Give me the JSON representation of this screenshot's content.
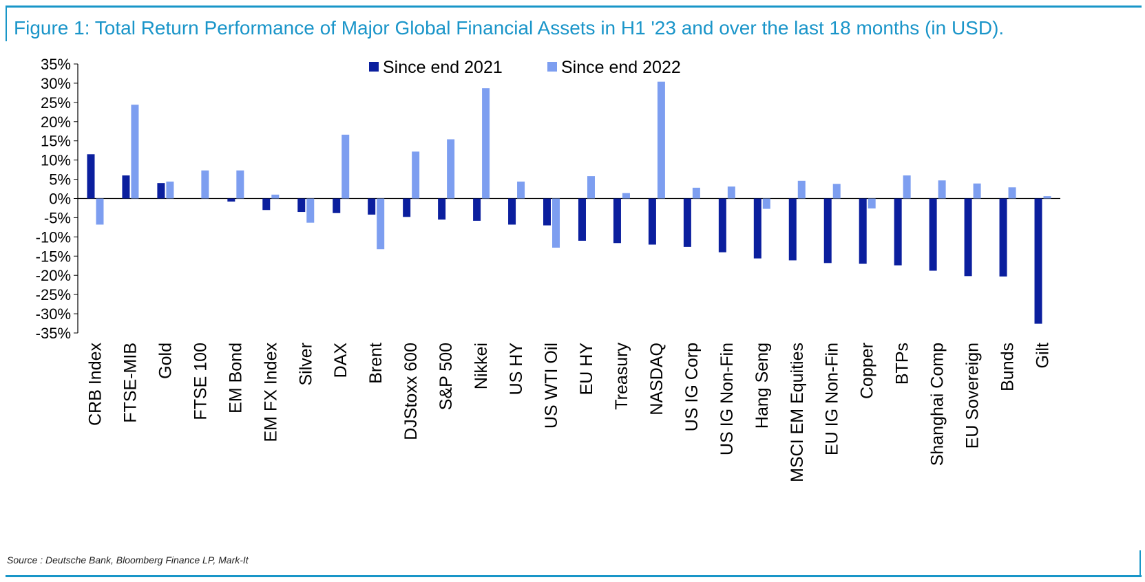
{
  "title": "Figure 1: Total Return Performance of Major Global Financial Assets in H1 '23 and over the last 18 months (in USD).",
  "source": "Source : Deutsche Bank, Bloomberg Finance LP, Mark-It",
  "chart_data": {
    "type": "bar",
    "ylim": [
      -35,
      35
    ],
    "yticks": [
      35,
      30,
      25,
      20,
      15,
      10,
      5,
      0,
      -5,
      -10,
      -15,
      -20,
      -25,
      -30,
      -35
    ],
    "ytick_labels": [
      "35%",
      "30%",
      "25%",
      "20%",
      "15%",
      "10%",
      "5%",
      "0%",
      "-5%",
      "-10%",
      "-15%",
      "-20%",
      "-25%",
      "-30%",
      "-35%"
    ],
    "legend_position": "top-center",
    "grid": false,
    "categories": [
      "CRB Index",
      "FTSE-MIB",
      "Gold",
      "FTSE 100",
      "EM Bond",
      "EM FX Index",
      "Silver",
      "DAX",
      "Brent",
      "DJStoxx 600",
      "S&P 500",
      "Nikkei",
      "US HY",
      "US WTI Oil",
      "EU HY",
      "Treasury",
      "NASDAQ",
      "US IG Corp",
      "US IG Non-Fin",
      "Hang Seng",
      "MSCI EM Equities",
      "EU IG Non-Fin",
      "Copper",
      "BTPs",
      "Shanghai Comp",
      "EU Sovereign",
      "Bunds",
      "Gilt"
    ],
    "series": [
      {
        "name": "Since end 2021",
        "color": "#0b1f9e",
        "values": [
          11.5,
          6.0,
          4.0,
          0.0,
          -0.8,
          -3.0,
          -3.5,
          -3.8,
          -4.2,
          -4.8,
          -5.5,
          -5.8,
          -6.8,
          -7.0,
          -11.0,
          -11.6,
          -12.0,
          -12.6,
          -14.0,
          -15.6,
          -16.1,
          -16.8,
          -17.0,
          -17.4,
          -18.8,
          -20.2,
          -20.3,
          -32.6
        ]
      },
      {
        "name": "Since end 2022",
        "color": "#7d9ef0",
        "values": [
          -6.8,
          24.4,
          4.4,
          7.3,
          7.3,
          1.0,
          -6.3,
          16.6,
          -13.2,
          12.2,
          15.4,
          28.7,
          4.4,
          -12.8,
          5.8,
          1.4,
          30.4,
          2.8,
          3.1,
          -2.7,
          4.6,
          3.8,
          -2.6,
          6.0,
          4.7,
          3.9,
          2.9,
          0.6
        ]
      }
    ]
  }
}
